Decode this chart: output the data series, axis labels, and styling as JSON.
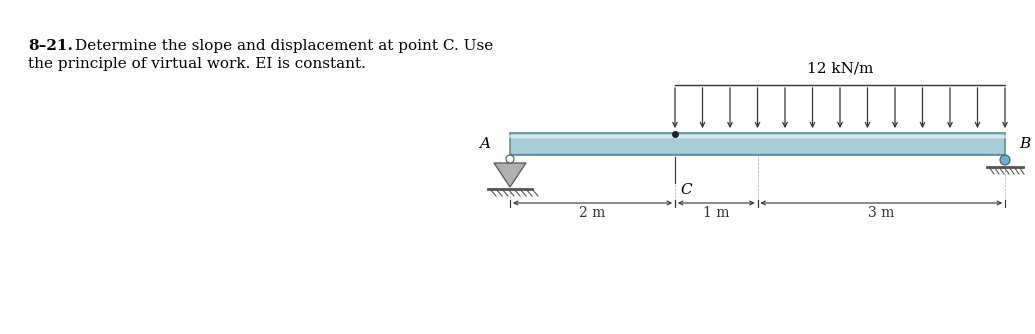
{
  "problem_number": "8–21.",
  "problem_desc_line1": "Determine the slope and displacement at point C. Use",
  "problem_desc_line2": "the principle of virtual work. EI is constant.",
  "load_label": "12 kN/m",
  "label_A": "A",
  "label_B": "B",
  "label_C": "C",
  "dim_2m": "2 m",
  "dim_1m": "1 m",
  "dim_3m": "3 m",
  "beam_color": "#a8cdd8",
  "beam_edge_color": "#5a8fa0",
  "beam_top_highlight": "#c8e4ee",
  "beam_bottom_shadow": "#5a8a9f",
  "n_arrows": 13,
  "bg_color": "#ffffff",
  "text_color": "#000000",
  "support_color": "#b0b0b0",
  "support_edge": "#555555",
  "roller_color": "#6ab0d4",
  "arrow_color": "#333333",
  "dim_color": "#333333"
}
